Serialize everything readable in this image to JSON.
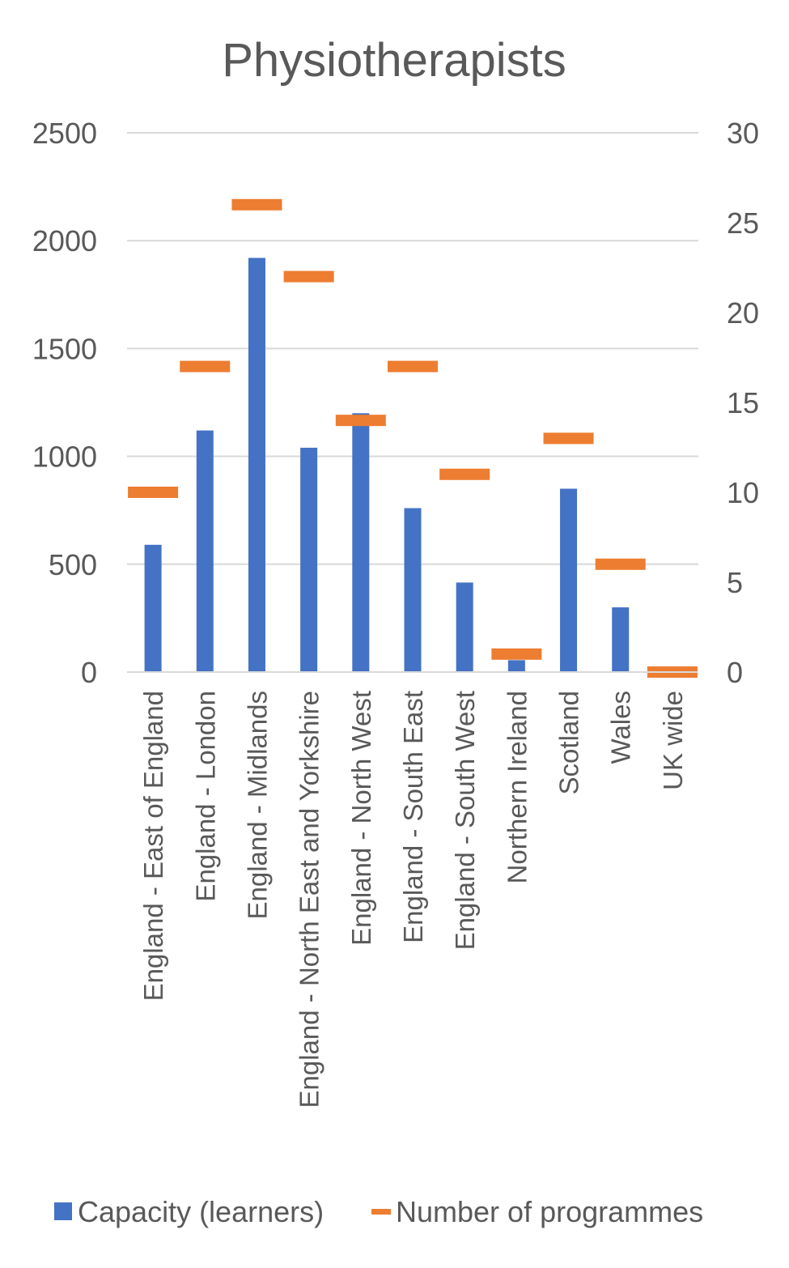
{
  "chart_data": {
    "type": "bar",
    "title": "Physiotherapists",
    "categories": [
      "England - East of England",
      "England - London",
      "England - Midlands",
      "England - North East and Yorkshire",
      "England - North West",
      "England - South East",
      "England - South West",
      "Northern Ireland",
      "Scotland",
      "Wales",
      "UK wide"
    ],
    "series": [
      {
        "name": "Capacity (learners)",
        "type": "bar",
        "axis": "left",
        "color": "#4472C4",
        "values": [
          590,
          1120,
          1920,
          1040,
          1200,
          760,
          415,
          55,
          850,
          300,
          0
        ]
      },
      {
        "name": "Number of programmes",
        "type": "marker",
        "axis": "right",
        "color": "#ED7D31",
        "values": [
          10,
          17,
          26,
          22,
          14,
          17,
          11,
          1,
          13,
          6,
          0
        ]
      }
    ],
    "y_left": {
      "ylim": [
        0,
        2500
      ],
      "ticks": [
        0,
        500,
        1000,
        1500,
        2000,
        2500
      ]
    },
    "y_right": {
      "ylim": [
        0,
        30
      ],
      "ticks": [
        0,
        5,
        10,
        15,
        20,
        25,
        30
      ]
    },
    "grid": true,
    "legend_position": "bottom"
  }
}
